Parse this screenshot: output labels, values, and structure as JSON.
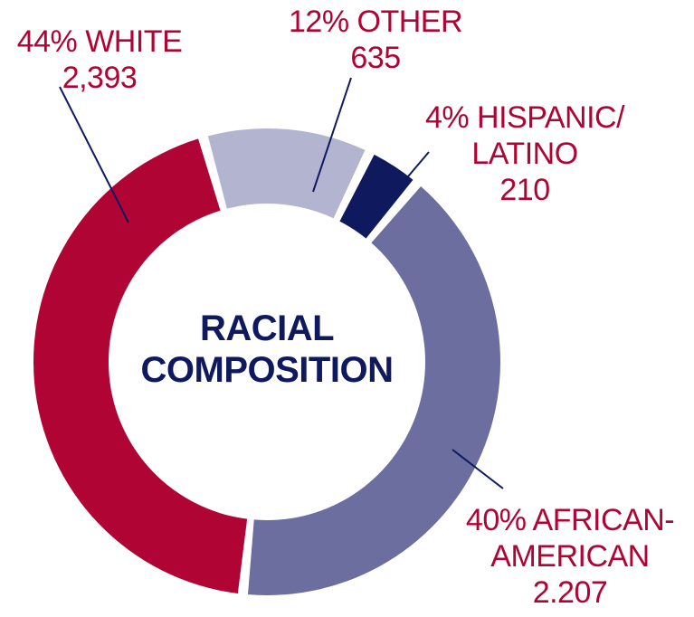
{
  "chart_data": {
    "type": "pie",
    "donut": true,
    "center_title": [
      "RACIAL",
      "COMPOSITION"
    ],
    "slices": [
      {
        "key": "african_american",
        "percent_label": "40% AFRICAN-",
        "name_line2": "AMERICAN",
        "count_label": "2.207",
        "value": 2207,
        "color": "#6b6e9e"
      },
      {
        "key": "white",
        "percent_label": "44% WHITE",
        "count_label": "2,393",
        "value": 2393,
        "color": "#b00434"
      },
      {
        "key": "other",
        "percent_label": "12% OTHER",
        "count_label": "635",
        "value": 635,
        "color": "#b3b5d0"
      },
      {
        "key": "hispanic_latino",
        "percent_label": "4% HISPANIC/",
        "name_line2": "LATINO",
        "count_label": "210",
        "value": 210,
        "color": "#0f1a5e"
      }
    ],
    "label_color": "#b00434",
    "title_color": "#0f1a5e",
    "leader_color": "#0f1a5e"
  }
}
